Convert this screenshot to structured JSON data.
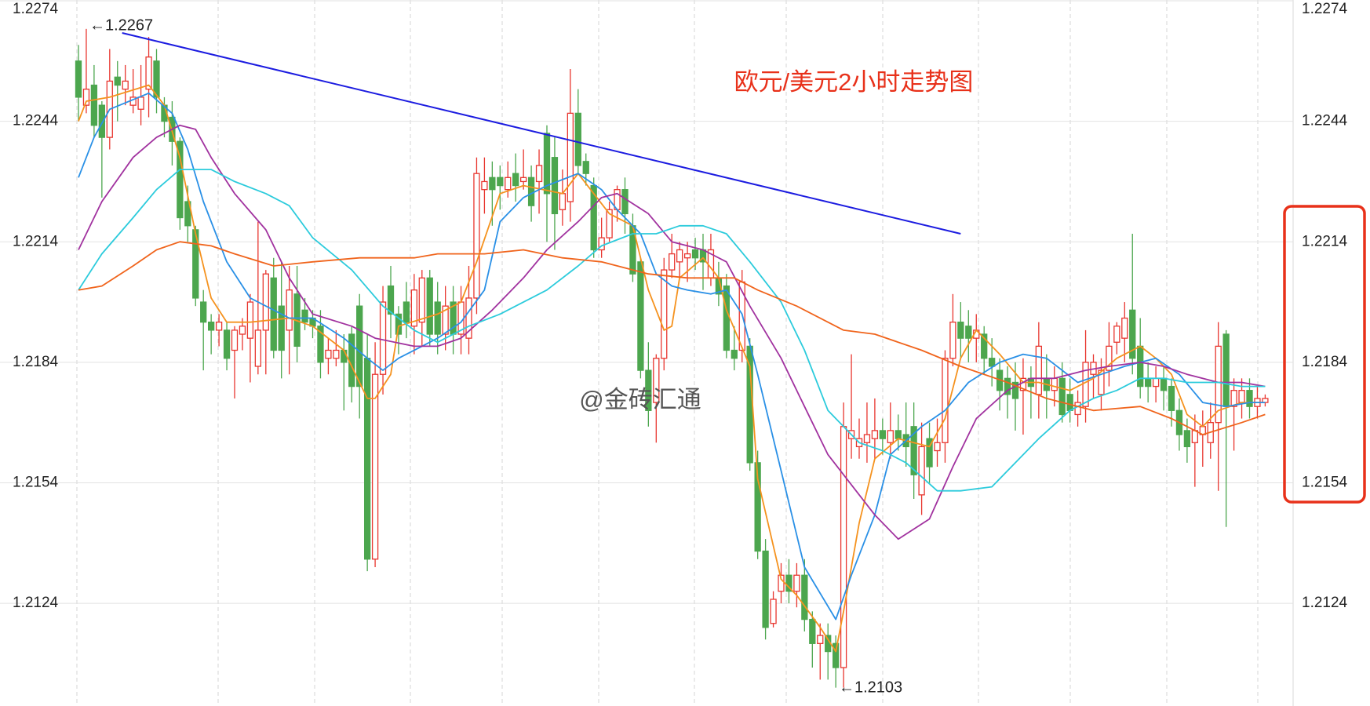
{
  "chart_data": {
    "type": "candlestick",
    "title": "欧元/美元2小时走势图",
    "watermark": "@金砖汇通",
    "annotations": [
      "←1.2267",
      "←1.2103"
    ],
    "up_color": "#e8362f",
    "down_color": "#4ca64e",
    "grid": true,
    "ylim": [
      1.21,
      1.2274
    ],
    "yticks": [
      1.2124,
      1.2154,
      1.2184,
      1.2214,
      1.2244,
      1.2274
    ],
    "open": [
      1.2259,
      1.2248,
      1.2253,
      1.2248,
      1.224,
      1.2255,
      1.2252,
      1.2248,
      1.2247,
      1.2252,
      1.2259,
      1.2248,
      1.2245,
      1.2239,
      1.2224,
      1.2217,
      1.2199,
      1.2194,
      1.2192,
      1.2192,
      1.2187,
      1.2191,
      1.219,
      1.2183,
      1.2192,
      1.2205,
      1.2198,
      1.2192,
      1.2201,
      1.2197,
      1.2195,
      1.2193,
      1.2185,
      1.2185,
      1.2187,
      1.2191,
      1.2198,
      1.2185,
      1.2135,
      1.2181,
      1.2203,
      1.2196,
      1.2199,
      1.2193,
      1.2194,
      1.2205,
      1.2199,
      1.2191,
      1.2199,
      1.2191,
      1.219,
      1.22,
      1.2227,
      1.223,
      1.223,
      1.2227,
      1.2231,
      1.2229,
      1.223,
      1.2229,
      1.2241,
      1.2235,
      1.2222,
      1.2224,
      1.2246,
      1.2234,
      1.2228,
      1.2212,
      1.2215,
      1.2222,
      1.2227,
      1.2218,
      1.2209,
      1.2182,
      1.2174,
      1.2185,
      1.2207,
      1.2209,
      1.221,
      1.2212,
      1.2212,
      1.2205,
      1.2205,
      1.2203,
      1.2187,
      1.2187,
      1.2188,
      1.2159,
      1.2137,
      1.2119,
      1.2127,
      1.2131,
      1.2127,
      1.2131,
      1.212,
      1.2114,
      1.2116,
      1.2114,
      1.2108,
      1.2165,
      1.2163,
      1.2164,
      1.2165,
      1.2167,
      1.2164,
      1.2167,
      1.2166,
      1.2168,
      1.2151,
      1.2165,
      1.2162,
      1.2164,
      1.2185,
      1.2194,
      1.2193,
      1.219,
      1.2191,
      1.2185,
      1.2182,
      1.218,
      1.2179,
      1.2177,
      1.218,
      1.2176,
      1.218,
      1.2177,
      1.218,
      1.2176,
      1.2171,
      1.2173,
      1.2181,
      1.2176,
      1.2182,
      1.2189,
      1.219,
      1.2197,
      1.2188,
      1.218,
      1.2178,
      1.218,
      1.2178,
      1.2172,
      1.2167,
      1.2164,
      1.2166,
      1.2164,
      1.2169,
      1.2191,
      1.2173,
      1.2174,
      1.2177,
      1.2173,
      1.2174
    ],
    "high": [
      1.2263,
      1.2267,
      1.2258,
      1.2249,
      1.2262,
      1.2259,
      1.2258,
      1.2257,
      1.2258,
      1.2265,
      1.2262,
      1.225,
      1.2249,
      1.224,
      1.2228,
      1.2218,
      1.2202,
      1.2196,
      1.2196,
      1.2194,
      1.2193,
      1.2195,
      1.2201,
      1.2219,
      1.2207,
      1.221,
      1.2209,
      1.2208,
      1.2208,
      1.22,
      1.2197,
      1.2197,
      1.219,
      1.2192,
      1.2191,
      1.2193,
      1.2201,
      1.2191,
      1.2189,
      1.2203,
      1.2208,
      1.2198,
      1.2204,
      1.2206,
      1.2207,
      1.2207,
      1.2204,
      1.2203,
      1.2203,
      1.2203,
      1.2208,
      1.2235,
      1.2235,
      1.2234,
      1.2233,
      1.2234,
      1.2236,
      1.2237,
      1.2233,
      1.2237,
      1.2243,
      1.224,
      1.2232,
      1.2257,
      1.2252,
      1.2236,
      1.223,
      1.222,
      1.2224,
      1.2228,
      1.223,
      1.2221,
      1.221,
      1.2189,
      1.2186,
      1.221,
      1.2216,
      1.2214,
      1.2214,
      1.2215,
      1.2216,
      1.2216,
      1.2209,
      1.2206,
      1.2193,
      1.2207,
      1.219,
      1.2162,
      1.214,
      1.2127,
      1.2134,
      1.2135,
      1.2134,
      1.2135,
      1.2122,
      1.2119,
      1.2119,
      1.2116,
      1.2174,
      1.2186,
      1.217,
      1.2174,
      1.2175,
      1.217,
      1.2174,
      1.2171,
      1.2174,
      1.2174,
      1.2169,
      1.2169,
      1.217,
      1.2187,
      1.2201,
      1.2199,
      1.2197,
      1.2196,
      1.2193,
      1.219,
      1.2185,
      1.2183,
      1.2184,
      1.2185,
      1.2183,
      1.2194,
      1.2186,
      1.2183,
      1.2184,
      1.218,
      1.2177,
      1.2192,
      1.2186,
      1.2185,
      1.2194,
      1.2194,
      1.2199,
      1.2216,
      1.2195,
      1.2184,
      1.2183,
      1.2183,
      1.218,
      1.2175,
      1.217,
      1.2171,
      1.2172,
      1.2174,
      1.2194,
      1.2192,
      1.218,
      1.218,
      1.218,
      1.2178,
      1.2176
    ],
    "low": [
      1.2244,
      1.2246,
      1.224,
      1.2225,
      1.2237,
      1.2244,
      1.2248,
      1.2246,
      1.2243,
      1.2245,
      1.2246,
      1.224,
      1.2233,
      1.2217,
      1.2214,
      1.2198,
      1.2182,
      1.2186,
      1.2188,
      1.2182,
      1.2175,
      1.2187,
      1.2179,
      1.2181,
      1.2181,
      1.2185,
      1.218,
      1.2181,
      1.2184,
      1.2192,
      1.219,
      1.218,
      1.2181,
      1.2183,
      1.2172,
      1.2174,
      1.217,
      1.2132,
      1.2133,
      1.2176,
      1.219,
      1.2186,
      1.219,
      1.2186,
      1.2188,
      1.2188,
      1.2186,
      1.2187,
      1.2186,
      1.2186,
      1.2186,
      1.2196,
      1.2221,
      1.2218,
      1.2222,
      1.2225,
      1.2224,
      1.2227,
      1.2219,
      1.2221,
      1.2214,
      1.2212,
      1.2218,
      1.2219,
      1.2231,
      1.2228,
      1.221,
      1.221,
      1.2214,
      1.2219,
      1.2216,
      1.2204,
      1.218,
      1.2168,
      1.2164,
      1.2182,
      1.2205,
      1.2205,
      1.2204,
      1.2207,
      1.2202,
      1.2203,
      1.2198,
      1.2185,
      1.2182,
      1.2184,
      1.2157,
      1.2135,
      1.2115,
      1.2118,
      1.2124,
      1.2124,
      1.2123,
      1.2117,
      1.2108,
      1.2105,
      1.2105,
      1.2103,
      1.2103,
      1.216,
      1.216,
      1.2159,
      1.216,
      1.2161,
      1.216,
      1.2162,
      1.2158,
      1.215,
      1.2146,
      1.2154,
      1.2158,
      1.2159,
      1.2183,
      1.2185,
      1.2184,
      1.2184,
      1.2181,
      1.2178,
      1.2172,
      1.217,
      1.2167,
      1.2166,
      1.217,
      1.217,
      1.217,
      1.2173,
      1.2169,
      1.2169,
      1.2168,
      1.2169,
      1.2175,
      1.2172,
      1.2178,
      1.2186,
      1.2184,
      1.2181,
      1.2175,
      1.2174,
      1.2174,
      1.2172,
      1.2168,
      1.2162,
      1.2159,
      1.2153,
      1.2158,
      1.216,
      1.2152,
      1.2143,
      1.2162,
      1.217,
      1.217,
      1.217,
      1.2173
    ],
    "close": [
      1.225,
      1.2252,
      1.2243,
      1.224,
      1.2254,
      1.2253,
      1.2254,
      1.225,
      1.225,
      1.226,
      1.225,
      1.2244,
      1.2239,
      1.222,
      1.2218,
      1.22,
      1.2194,
      1.2192,
      1.2194,
      1.2185,
      1.2192,
      1.2193,
      1.2199,
      1.2192,
      1.2206,
      1.2187,
      1.2187,
      1.2202,
      1.2188,
      1.2194,
      1.2193,
      1.2184,
      1.2187,
      1.2187,
      1.2184,
      1.2178,
      1.2178,
      1.2135,
      1.2181,
      1.2199,
      1.2196,
      1.2191,
      1.2194,
      1.2202,
      1.2205,
      1.2191,
      1.2191,
      1.2198,
      1.2191,
      1.2199,
      1.22,
      1.2231,
      1.2229,
      1.2227,
      1.2228,
      1.223,
      1.2228,
      1.223,
      1.2223,
      1.2233,
      1.2226,
      1.2221,
      1.2226,
      1.2246,
      1.2233,
      1.2231,
      1.2212,
      1.2215,
      1.2222,
      1.2227,
      1.2221,
      1.2206,
      1.2182,
      1.2172,
      1.2185,
      1.2207,
      1.2211,
      1.2212,
      1.2211,
      1.221,
      1.2209,
      1.2212,
      1.2201,
      1.2187,
      1.2185,
      1.2204,
      1.2159,
      1.2137,
      1.2118,
      1.2125,
      1.2131,
      1.2127,
      1.2131,
      1.212,
      1.2114,
      1.2116,
      1.2112,
      1.2108,
      1.2168,
      1.2167,
      1.2165,
      1.2166,
      1.2167,
      1.2165,
      1.2167,
      1.2165,
      1.2163,
      1.2156,
      1.2163,
      1.2158,
      1.2164,
      1.2185,
      1.2194,
      1.219,
      1.219,
      1.2192,
      1.2185,
      1.2183,
      1.2177,
      1.2176,
      1.2175,
      1.218,
      1.2178,
      1.2188,
      1.2177,
      1.218,
      1.2171,
      1.2172,
      1.2174,
      1.2184,
      1.2184,
      1.2182,
      1.2188,
      1.2193,
      1.2195,
      1.2185,
      1.2178,
      1.2178,
      1.218,
      1.2177,
      1.2172,
      1.2166,
      1.2163,
      1.2167,
      1.2168,
      1.2169,
      1.2188,
      1.2173,
      1.2177,
      1.2177,
      1.2173,
      1.2175,
      1.2175
    ],
    "series": [
      {
        "color": "#f5921e",
        "x": [
          0,
          1,
          4,
          9,
          11,
          13,
          15,
          17,
          19,
          22,
          27,
          30,
          34,
          37,
          38,
          40,
          41,
          46,
          49,
          51,
          54,
          57,
          62,
          64,
          66,
          68,
          71,
          73,
          75,
          76,
          77,
          80,
          82,
          83,
          86,
          87,
          90,
          92,
          95,
          97,
          98,
          100,
          102,
          105,
          109,
          111,
          113,
          115,
          118,
          121,
          123,
          127,
          130,
          133,
          136,
          138,
          140,
          142,
          144,
          146,
          149,
          152
        ],
        "values": [
          1.2244,
          1.2249,
          1.225,
          1.2253,
          1.2248,
          1.2235,
          1.2216,
          1.22,
          1.2194,
          1.2194,
          1.2195,
          1.2193,
          1.2187,
          1.2175,
          1.2175,
          1.2181,
          1.2193,
          1.2196,
          1.2199,
          1.2209,
          1.2226,
          1.2228,
          1.2226,
          1.2231,
          1.2226,
          1.2221,
          1.2218,
          1.2202,
          1.2192,
          1.2193,
          1.2205,
          1.221,
          1.2205,
          1.2197,
          1.2183,
          1.2155,
          1.213,
          1.2126,
          1.2118,
          1.2112,
          1.2122,
          1.2144,
          1.216,
          1.2165,
          1.2163,
          1.217,
          1.2185,
          1.2192,
          1.2186,
          1.2179,
          1.2179,
          1.2177,
          1.218,
          1.2185,
          1.2188,
          1.2185,
          1.2181,
          1.2171,
          1.2168,
          1.2172,
          1.2174,
          1.2174
        ]
      },
      {
        "color": "#2a90e6",
        "x": [
          0,
          2,
          4,
          9,
          12,
          14,
          16,
          19,
          22,
          27,
          30,
          34,
          37,
          39,
          41,
          44,
          46,
          49,
          52,
          54,
          57,
          60,
          64,
          67,
          69,
          72,
          74,
          76,
          78,
          81,
          83,
          85,
          87,
          90,
          93,
          97,
          99,
          102,
          104,
          108,
          111,
          114,
          118,
          121,
          124,
          128,
          131,
          134,
          138,
          141,
          144,
          147,
          150,
          152
        ],
        "values": [
          1.223,
          1.224,
          1.2247,
          1.2251,
          1.2246,
          1.2237,
          1.2224,
          1.2209,
          1.22,
          1.2195,
          1.2195,
          1.219,
          1.2185,
          1.2182,
          1.2185,
          1.2188,
          1.219,
          1.2194,
          1.2202,
          1.2219,
          1.2225,
          1.2228,
          1.2231,
          1.2227,
          1.2222,
          1.2216,
          1.2206,
          1.2203,
          1.2202,
          1.2201,
          1.2202,
          1.2196,
          1.2181,
          1.2157,
          1.2133,
          1.212,
          1.2131,
          1.2146,
          1.2161,
          1.2168,
          1.2172,
          1.2179,
          1.2184,
          1.2186,
          1.2185,
          1.2179,
          1.2181,
          1.2183,
          1.2185,
          1.2181,
          1.2174,
          1.2173,
          1.2174,
          1.2174
        ]
      },
      {
        "color": "#a1329f",
        "x": [
          0,
          3,
          7,
          10,
          13,
          15,
          17,
          20,
          24,
          27,
          30,
          35,
          38,
          43,
          46,
          49,
          53,
          57,
          60,
          64,
          67,
          69,
          73,
          76,
          80,
          83,
          86,
          90,
          93,
          96,
          100,
          102,
          105,
          109,
          112,
          115,
          119,
          122,
          125,
          129,
          132,
          136,
          139,
          142,
          146,
          149,
          152
        ],
        "values": [
          1.2212,
          1.2224,
          1.2235,
          1.224,
          1.2243,
          1.2242,
          1.2235,
          1.2226,
          1.2217,
          1.2205,
          1.2196,
          1.2193,
          1.219,
          1.2188,
          1.2188,
          1.219,
          1.2197,
          1.2205,
          1.2212,
          1.2219,
          1.2225,
          1.2226,
          1.2221,
          1.2214,
          1.2212,
          1.2209,
          1.2198,
          1.2185,
          1.2173,
          1.2161,
          1.2151,
          1.2146,
          1.214,
          1.2145,
          1.2158,
          1.217,
          1.2177,
          1.218,
          1.218,
          1.2182,
          1.2183,
          1.2184,
          1.2183,
          1.2181,
          1.2179,
          1.2179,
          1.2178
        ]
      },
      {
        "color": "#2ccbdc",
        "x": [
          0,
          3,
          7,
          10,
          13,
          17,
          20,
          24,
          27,
          30,
          35,
          39,
          43,
          46,
          50,
          54,
          57,
          60,
          64,
          67,
          71,
          74,
          77,
          80,
          83,
          86,
          90,
          93,
          96,
          100,
          103,
          106,
          110,
          113,
          117,
          120,
          123,
          127,
          130,
          133,
          136,
          139,
          142,
          146,
          149,
          152
        ],
        "values": [
          1.2202,
          1.2211,
          1.222,
          1.2227,
          1.2232,
          1.2232,
          1.2229,
          1.2226,
          1.2223,
          1.2215,
          1.2207,
          1.2198,
          1.2192,
          1.2189,
          1.2193,
          1.2196,
          1.2199,
          1.2202,
          1.2208,
          1.2213,
          1.2216,
          1.2216,
          1.2218,
          1.2218,
          1.2216,
          1.2209,
          1.2199,
          1.2187,
          1.2172,
          1.2164,
          1.2162,
          1.2159,
          1.2152,
          1.2152,
          1.2153,
          1.2159,
          1.2165,
          1.2172,
          1.2175,
          1.2177,
          1.218,
          1.218,
          1.2179,
          1.2179,
          1.2178,
          1.2178
        ]
      },
      {
        "color": "#f0641c",
        "x": [
          0,
          3,
          7,
          10,
          13,
          17,
          20,
          25,
          30,
          36,
          43,
          46,
          52,
          57,
          62,
          67,
          73,
          78,
          84,
          87,
          92,
          98,
          102,
          108,
          113,
          119,
          124,
          130,
          136,
          140,
          144,
          149,
          152
        ],
        "values": [
          1.2202,
          1.2203,
          1.2208,
          1.2212,
          1.2214,
          1.2213,
          1.2211,
          1.2208,
          1.2209,
          1.221,
          1.221,
          1.2211,
          1.2211,
          1.2212,
          1.221,
          1.2209,
          1.2206,
          1.2205,
          1.2205,
          1.2202,
          1.2198,
          1.2192,
          1.2191,
          1.2187,
          1.2183,
          1.2179,
          1.2175,
          1.2172,
          1.2173,
          1.217,
          1.2166,
          1.2169,
          1.2171
        ]
      }
    ],
    "trendline": {
      "color": "#1c1ce0",
      "x": [
        5.6,
        113
      ],
      "values": [
        1.2266,
        1.2216
      ]
    }
  }
}
